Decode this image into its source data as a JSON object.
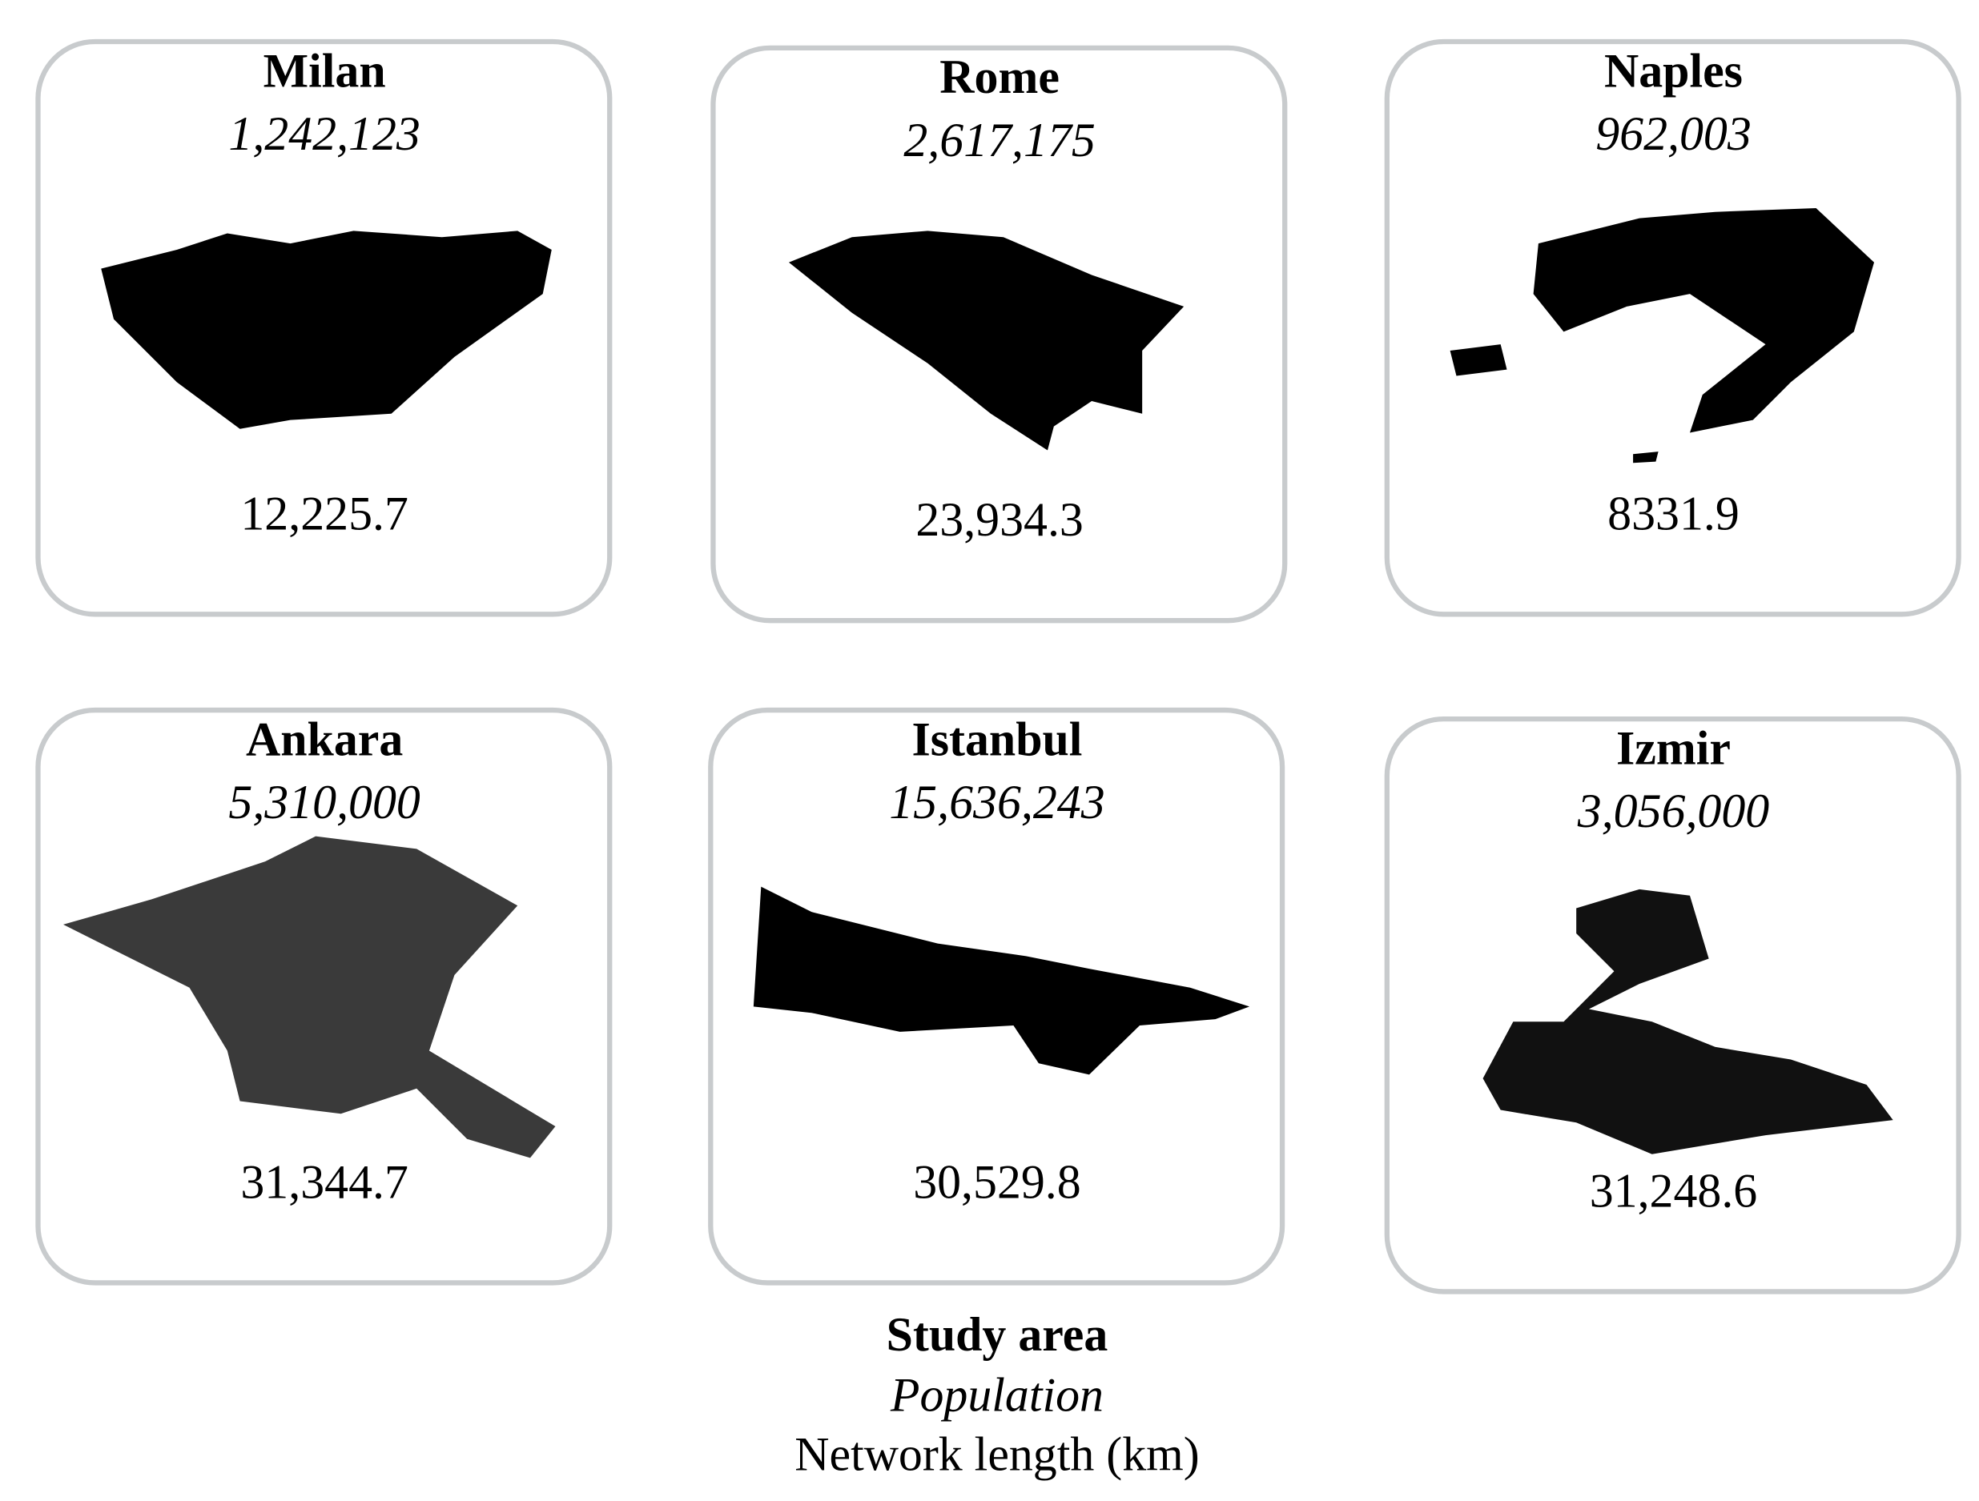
{
  "panels": [
    {
      "name": "Milan",
      "population": "1,242,123",
      "network_length": "12,225.7"
    },
    {
      "name": "Rome",
      "population": "2,617,175",
      "network_length": "23,934.3"
    },
    {
      "name": "Naples",
      "population": "962,003",
      "network_length": "8331.9"
    },
    {
      "name": "Ankara",
      "population": "5,310,000",
      "network_length": "31,344.7"
    },
    {
      "name": "Istanbul",
      "population": "15,636,243",
      "network_length": "30,529.8"
    },
    {
      "name": "Izmir",
      "population": "3,056,000",
      "network_length": "31,248.6"
    }
  ],
  "legend": {
    "title": "Study area",
    "population": "Population",
    "network_length": "Network length (km)"
  }
}
